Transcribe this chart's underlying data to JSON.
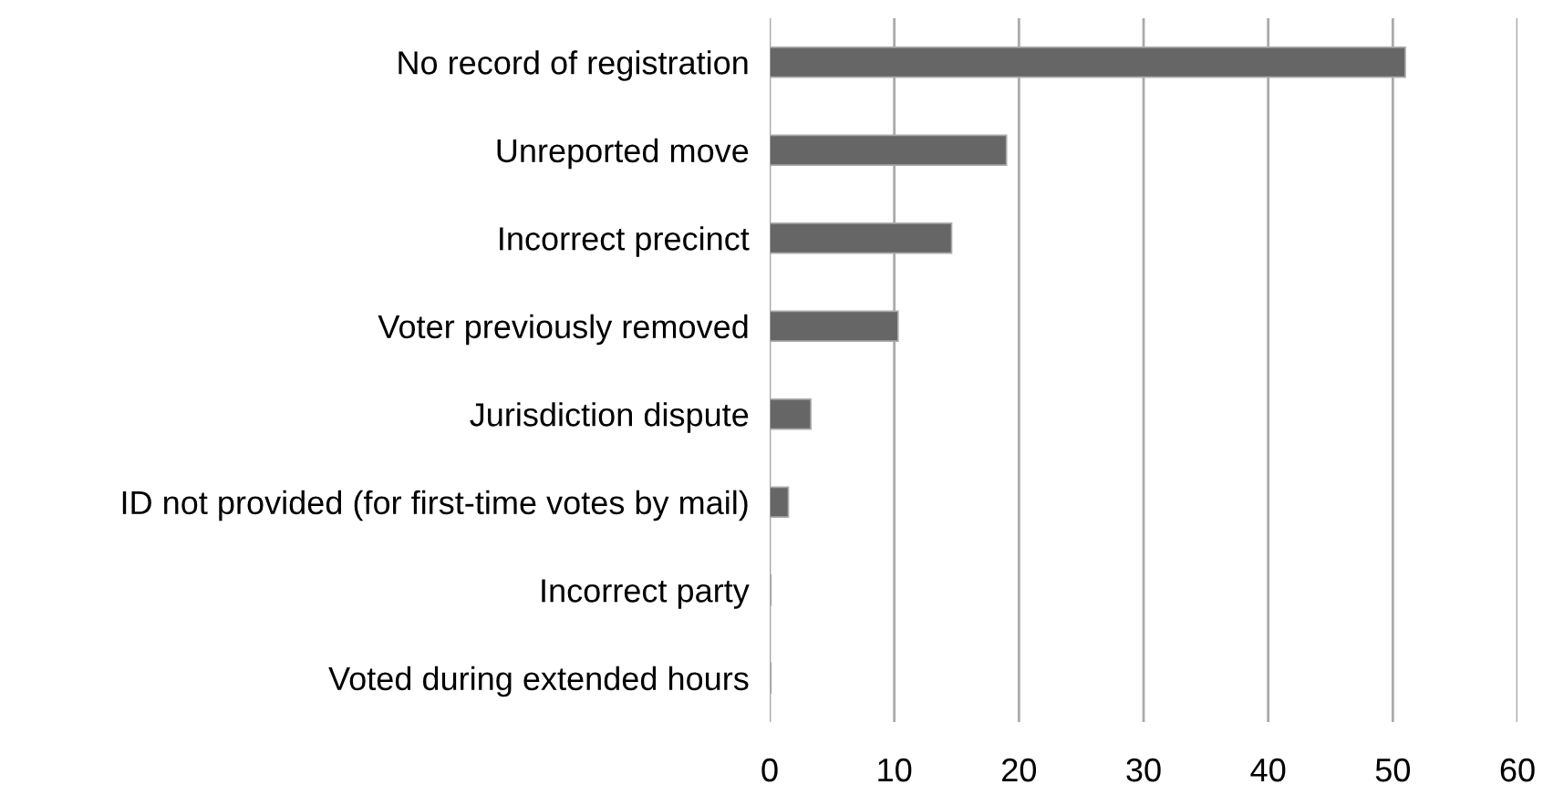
{
  "chart_data": {
    "type": "bar",
    "orientation": "horizontal",
    "categories": [
      "No record of registration",
      "Unreported move",
      "Incorrect precinct",
      "Voter previously removed",
      "Jurisdiction dispute",
      "ID not provided (for first-time votes by mail)",
      "Incorrect party",
      "Voted during extended hours"
    ],
    "values": [
      51,
      19,
      14.6,
      10.3,
      3.3,
      1.5,
      0.1,
      0.1
    ],
    "color": "#666666",
    "xlim": [
      0,
      60
    ],
    "xticks": [
      0,
      10,
      20,
      30,
      40,
      50,
      60
    ],
    "grid": "x",
    "legend": false
  }
}
